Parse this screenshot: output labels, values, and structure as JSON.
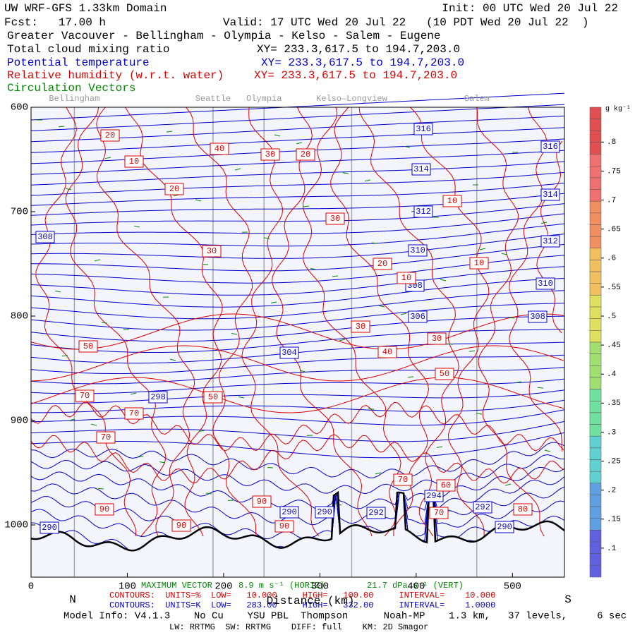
{
  "header": {
    "model": "UW WRF-GFS 1.33km Domain",
    "init": "Init: 00 UTC Wed 20 Jul 22",
    "fcst": "Fcst:   17.00 h",
    "valid": "Valid: 17 UTC Wed 20 Jul 22   (10 PDT Wed 20 Jul 22  )",
    "region": "Greater Vacouver - Bellingham - Olympia - Kelso - Salem - Eugene",
    "fields": [
      {
        "name": "Total cloud mixing ratio",
        "xy": "XY= 233.3,617.5 to 194.7,203.0",
        "color": "#000000"
      },
      {
        "name": "Potential temperature",
        "xy": "XY= 233.3,617.5 to 194.7,203.0",
        "color": "#0000cc"
      },
      {
        "name": "Relative humidity (w.r.t. water)",
        "xy": "XY= 233.3,617.5 to 194.7,203.0",
        "color": "#dd0000"
      },
      {
        "name": "Circulation Vectors",
        "color": "#008800"
      }
    ]
  },
  "chart_data": {
    "type": "contour",
    "xlim": [
      0,
      554
    ],
    "xticks": [
      0,
      100,
      200,
      300,
      400,
      500
    ],
    "ylim": [
      600,
      1050
    ],
    "yticks": [
      600,
      700,
      800,
      900,
      1000
    ],
    "x_label": "Distance (km)",
    "left_end": "N",
    "right_end": "S",
    "locations": [
      {
        "name": "Bellingham",
        "x": 45
      },
      {
        "name": "Seattle",
        "x": 189
      },
      {
        "name": "Olympia",
        "x": 242
      },
      {
        "name": "Kelso—Longview",
        "x": 333
      },
      {
        "name": "Salem",
        "x": 463
      }
    ],
    "theta_contours": {
      "color": "#0000cc",
      "labels": [
        316,
        316,
        314,
        314,
        312,
        312,
        310,
        310,
        308,
        308,
        308,
        306,
        304,
        298,
        290,
        290,
        290,
        292,
        294,
        292,
        290
      ]
    },
    "rh_contours": {
      "color": "#dd0000",
      "labels": [
        20,
        10,
        40,
        30,
        20,
        20,
        30,
        10,
        30,
        20,
        10,
        10,
        30,
        40,
        30,
        50,
        50,
        50,
        70,
        70,
        70,
        90,
        90,
        70,
        60,
        80,
        70,
        90,
        90
      ]
    },
    "colorbar": {
      "label": "g kg⁻¹",
      "clim": [
        0.05,
        0.86
      ],
      "ticks": [
        {
          "value": 0.1,
          "label": ".1"
        },
        {
          "value": 0.15,
          "label": ".15"
        },
        {
          "value": 0.2,
          "label": ".2"
        },
        {
          "value": 0.25,
          "label": ".25"
        },
        {
          "value": 0.3,
          "label": ".3"
        },
        {
          "value": 0.35,
          "label": ".35"
        },
        {
          "value": 0.4,
          "label": ".4"
        },
        {
          "value": 0.45,
          "label": ".45"
        },
        {
          "value": 0.5,
          "label": ".5"
        },
        {
          "value": 0.55,
          "label": ".55"
        },
        {
          "value": 0.6,
          "label": ".6"
        },
        {
          "value": 0.65,
          "label": ".65"
        },
        {
          "value": 0.7,
          "label": ".7"
        },
        {
          "value": 0.75,
          "label": ".75"
        },
        {
          "value": 0.8,
          "label": ".8"
        }
      ]
    }
  },
  "footer": {
    "max_vector": "MAXIMUM VECTOR",
    "horiz": "8.9 m s⁻¹ (HORIZ)",
    "vert": "21.7 dPa s⁻¹ (VERT)",
    "rh_contours": "CONTOURS:  UNITS=%  LOW=   10.000     HIGH=   100.00     INTERVAL=    10.000",
    "theta_contours": "CONTOURS:  UNITS=K  LOW=   283.00     HIGH=   332.00     INTERVAL=    1.0000",
    "model_info": "Model Info: V4.1.3    No Cu    YSU PBL  Thompson      Noah-MP    1.3 km,   37 levels,     6 sec",
    "physics": "LW: RRTMG  SW: RRTMG    DIFF: full    KM: 2D Smagor"
  }
}
